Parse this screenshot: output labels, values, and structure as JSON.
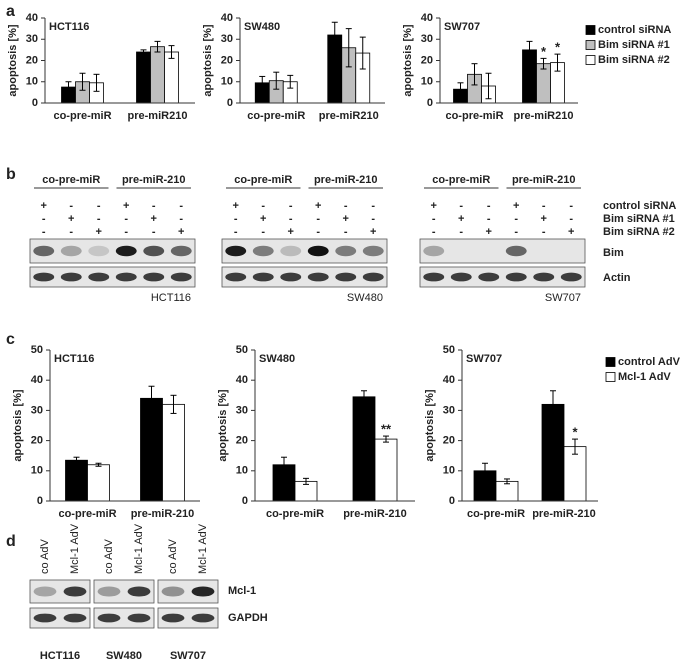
{
  "panel_labels": [
    "a",
    "b",
    "c",
    "d"
  ],
  "chart_data": [
    {
      "type": "bar",
      "title": "HCT116",
      "y_label": "apoptosis [%]",
      "categories": [
        "co-pre-miR",
        "pre-miR210"
      ],
      "series": [
        {
          "color": "#000000",
          "values": [
            7.5,
            24
          ],
          "errors": [
            2.5,
            1
          ]
        },
        {
          "color": "#bfbfbf",
          "values": [
            10,
            26.5
          ],
          "errors": [
            4,
            2.5
          ]
        },
        {
          "color": "#ffffff",
          "values": [
            9.5,
            24
          ],
          "errors": [
            4,
            3
          ]
        }
      ],
      "ylim": [
        0,
        40
      ],
      "yticks": [
        0,
        10,
        20,
        30,
        40
      ]
    },
    {
      "type": "bar",
      "title": "SW480",
      "y_label": "apoptosis [%]",
      "categories": [
        "co-pre-miR",
        "pre-miR210"
      ],
      "series": [
        {
          "color": "#000000",
          "values": [
            9.5,
            32
          ],
          "errors": [
            3,
            6
          ]
        },
        {
          "color": "#bfbfbf",
          "values": [
            10.5,
            26
          ],
          "errors": [
            4,
            9
          ]
        },
        {
          "color": "#ffffff",
          "values": [
            10,
            23.5
          ],
          "errors": [
            3,
            7.5
          ]
        }
      ],
      "ylim": [
        0,
        40
      ],
      "yticks": [
        0,
        10,
        20,
        30,
        40
      ]
    },
    {
      "type": "bar",
      "title": "SW707",
      "y_label": "apoptosis [%]",
      "categories": [
        "co-pre-miR",
        "pre-miR210"
      ],
      "series": [
        {
          "name": "control siRNA",
          "color": "#000000",
          "values": [
            6.5,
            25
          ],
          "errors": [
            3,
            4
          ]
        },
        {
          "name": "Bim siRNA #1",
          "color": "#bfbfbf",
          "values": [
            13.5,
            18.5
          ],
          "errors": [
            5,
            2.5
          ]
        },
        {
          "name": "Bim siRNA #2",
          "color": "#ffffff",
          "values": [
            8,
            19
          ],
          "errors": [
            6,
            4
          ]
        }
      ],
      "ylim": [
        0,
        40
      ],
      "yticks": [
        0,
        10,
        20,
        30,
        40
      ],
      "legend": "right",
      "annotations": [
        {
          "text": "*",
          "series": "Bim siRNA #1",
          "category": "pre-miR210"
        },
        {
          "text": "*",
          "series": "Bim siRNA #2",
          "category": "pre-miR210"
        }
      ]
    },
    {
      "type": "bar",
      "title": "HCT116",
      "y_label": "apoptosis [%]",
      "categories": [
        "co-pre-miR",
        "pre-miR-210"
      ],
      "series": [
        {
          "color": "#000000",
          "values": [
            13.5,
            34
          ],
          "errors": [
            1,
            4
          ]
        },
        {
          "color": "#ffffff",
          "values": [
            12,
            32
          ],
          "errors": [
            0.5,
            3
          ]
        }
      ],
      "ylim": [
        0,
        50
      ],
      "yticks": [
        0,
        10,
        20,
        30,
        40,
        50
      ]
    },
    {
      "type": "bar",
      "title": "SW480",
      "y_label": "apoptosis [%]",
      "categories": [
        "co-pre-miR",
        "pre-miR-210"
      ],
      "series": [
        {
          "color": "#000000",
          "values": [
            12,
            34.5
          ],
          "errors": [
            2.5,
            2
          ]
        },
        {
          "color": "#ffffff",
          "values": [
            6.5,
            20.5
          ],
          "errors": [
            1,
            1
          ]
        }
      ],
      "ylim": [
        0,
        50
      ],
      "yticks": [
        0,
        10,
        20,
        30,
        40,
        50
      ],
      "annotations": [
        {
          "text": "**",
          "series": 1,
          "category": "pre-miR-210"
        }
      ]
    },
    {
      "type": "bar",
      "title": "SW707",
      "y_label": "apoptosis [%]",
      "categories": [
        "co-pre-miR",
        "pre-miR-210"
      ],
      "series": [
        {
          "name": "control AdV",
          "color": "#000000",
          "values": [
            10,
            32
          ],
          "errors": [
            2.5,
            4.5
          ]
        },
        {
          "name": "Mcl-1 AdV",
          "color": "#ffffff",
          "values": [
            6.5,
            18
          ],
          "errors": [
            0.8,
            2.5
          ]
        }
      ],
      "ylim": [
        0,
        50
      ],
      "yticks": [
        0,
        10,
        20,
        30,
        40,
        50
      ],
      "legend": "right",
      "annotations": [
        {
          "text": "*",
          "series": "Mcl-1 AdV",
          "category": "pre-miR-210"
        }
      ]
    }
  ],
  "blot_b": {
    "groups": [
      "co-pre-miR",
      "pre-miR-210"
    ],
    "conditions": [
      "control siRNA",
      "Bim siRNA #1",
      "Bim siRNA #2"
    ],
    "signs": [
      [
        "+",
        "-",
        "-",
        "+",
        "-",
        "-"
      ],
      [
        "-",
        "+",
        "-",
        "-",
        "+",
        "-"
      ],
      [
        "-",
        "-",
        "+",
        "-",
        "-",
        "+"
      ]
    ],
    "bands": [
      "Bim",
      "Actin"
    ],
    "cell_lines": [
      "HCT116",
      "SW480",
      "SW707"
    ]
  },
  "blot_d": {
    "conditions": [
      "co AdV",
      "Mcl-1 AdV"
    ],
    "bands": [
      "Mcl-1",
      "GAPDH"
    ],
    "cell_lines": [
      "HCT116",
      "SW480",
      "SW707"
    ]
  }
}
